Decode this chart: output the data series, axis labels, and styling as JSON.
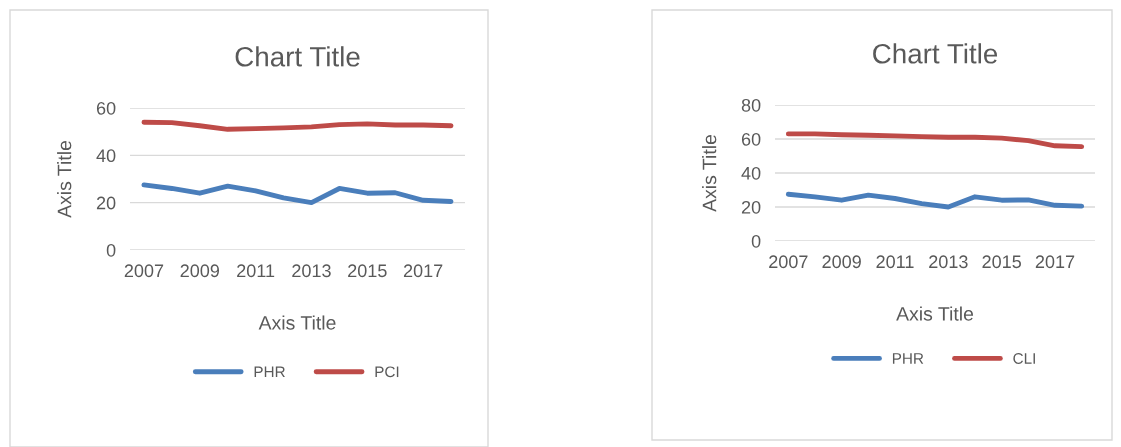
{
  "chart_data": [
    {
      "type": "line",
      "title": "Chart Title",
      "xlabel": "Axis Title",
      "ylabel": "Axis Title",
      "categories": [
        "2007",
        null,
        "2009",
        null,
        "2011",
        null,
        "2013",
        null,
        "2015",
        null,
        "2017",
        null
      ],
      "series": [
        {
          "name": "PHR",
          "color": "#4a7ebb",
          "values": [
            27.5,
            26,
            24,
            27,
            25,
            22,
            20,
            26,
            24,
            24.2,
            21,
            20.5
          ]
        },
        {
          "name": "PCI",
          "color": "#be4b48",
          "values": [
            54,
            53.8,
            52.5,
            51,
            51.3,
            51.6,
            52,
            53,
            53.3,
            52.8,
            52.8,
            52.5
          ]
        }
      ],
      "ylim": [
        0,
        60
      ],
      "yticks": [
        0,
        20,
        40,
        60
      ],
      "grid": "y",
      "legend": "bottom",
      "marker": "none",
      "line_style": "solid"
    },
    {
      "type": "line",
      "title": "Chart Title",
      "xlabel": "Axis Title",
      "ylabel": "Axis Title",
      "categories": [
        "2007",
        null,
        "2009",
        null,
        "2011",
        null,
        "2013",
        null,
        "2015",
        null,
        "2017",
        null
      ],
      "series": [
        {
          "name": "PHR",
          "color": "#4a7ebb",
          "values": [
            27.5,
            26,
            24,
            27,
            25,
            22,
            20,
            26,
            24,
            24.2,
            21,
            20.5
          ]
        },
        {
          "name": "CLI",
          "color": "#be4b48",
          "values": [
            63,
            63,
            62.5,
            62.2,
            61.8,
            61.4,
            61,
            61,
            60.5,
            59,
            56,
            55.5
          ]
        }
      ],
      "ylim": [
        0,
        80
      ],
      "yticks": [
        0,
        20,
        40,
        60,
        80
      ],
      "grid": "y",
      "legend": "bottom",
      "marker": "none",
      "line_style": "solid"
    }
  ]
}
